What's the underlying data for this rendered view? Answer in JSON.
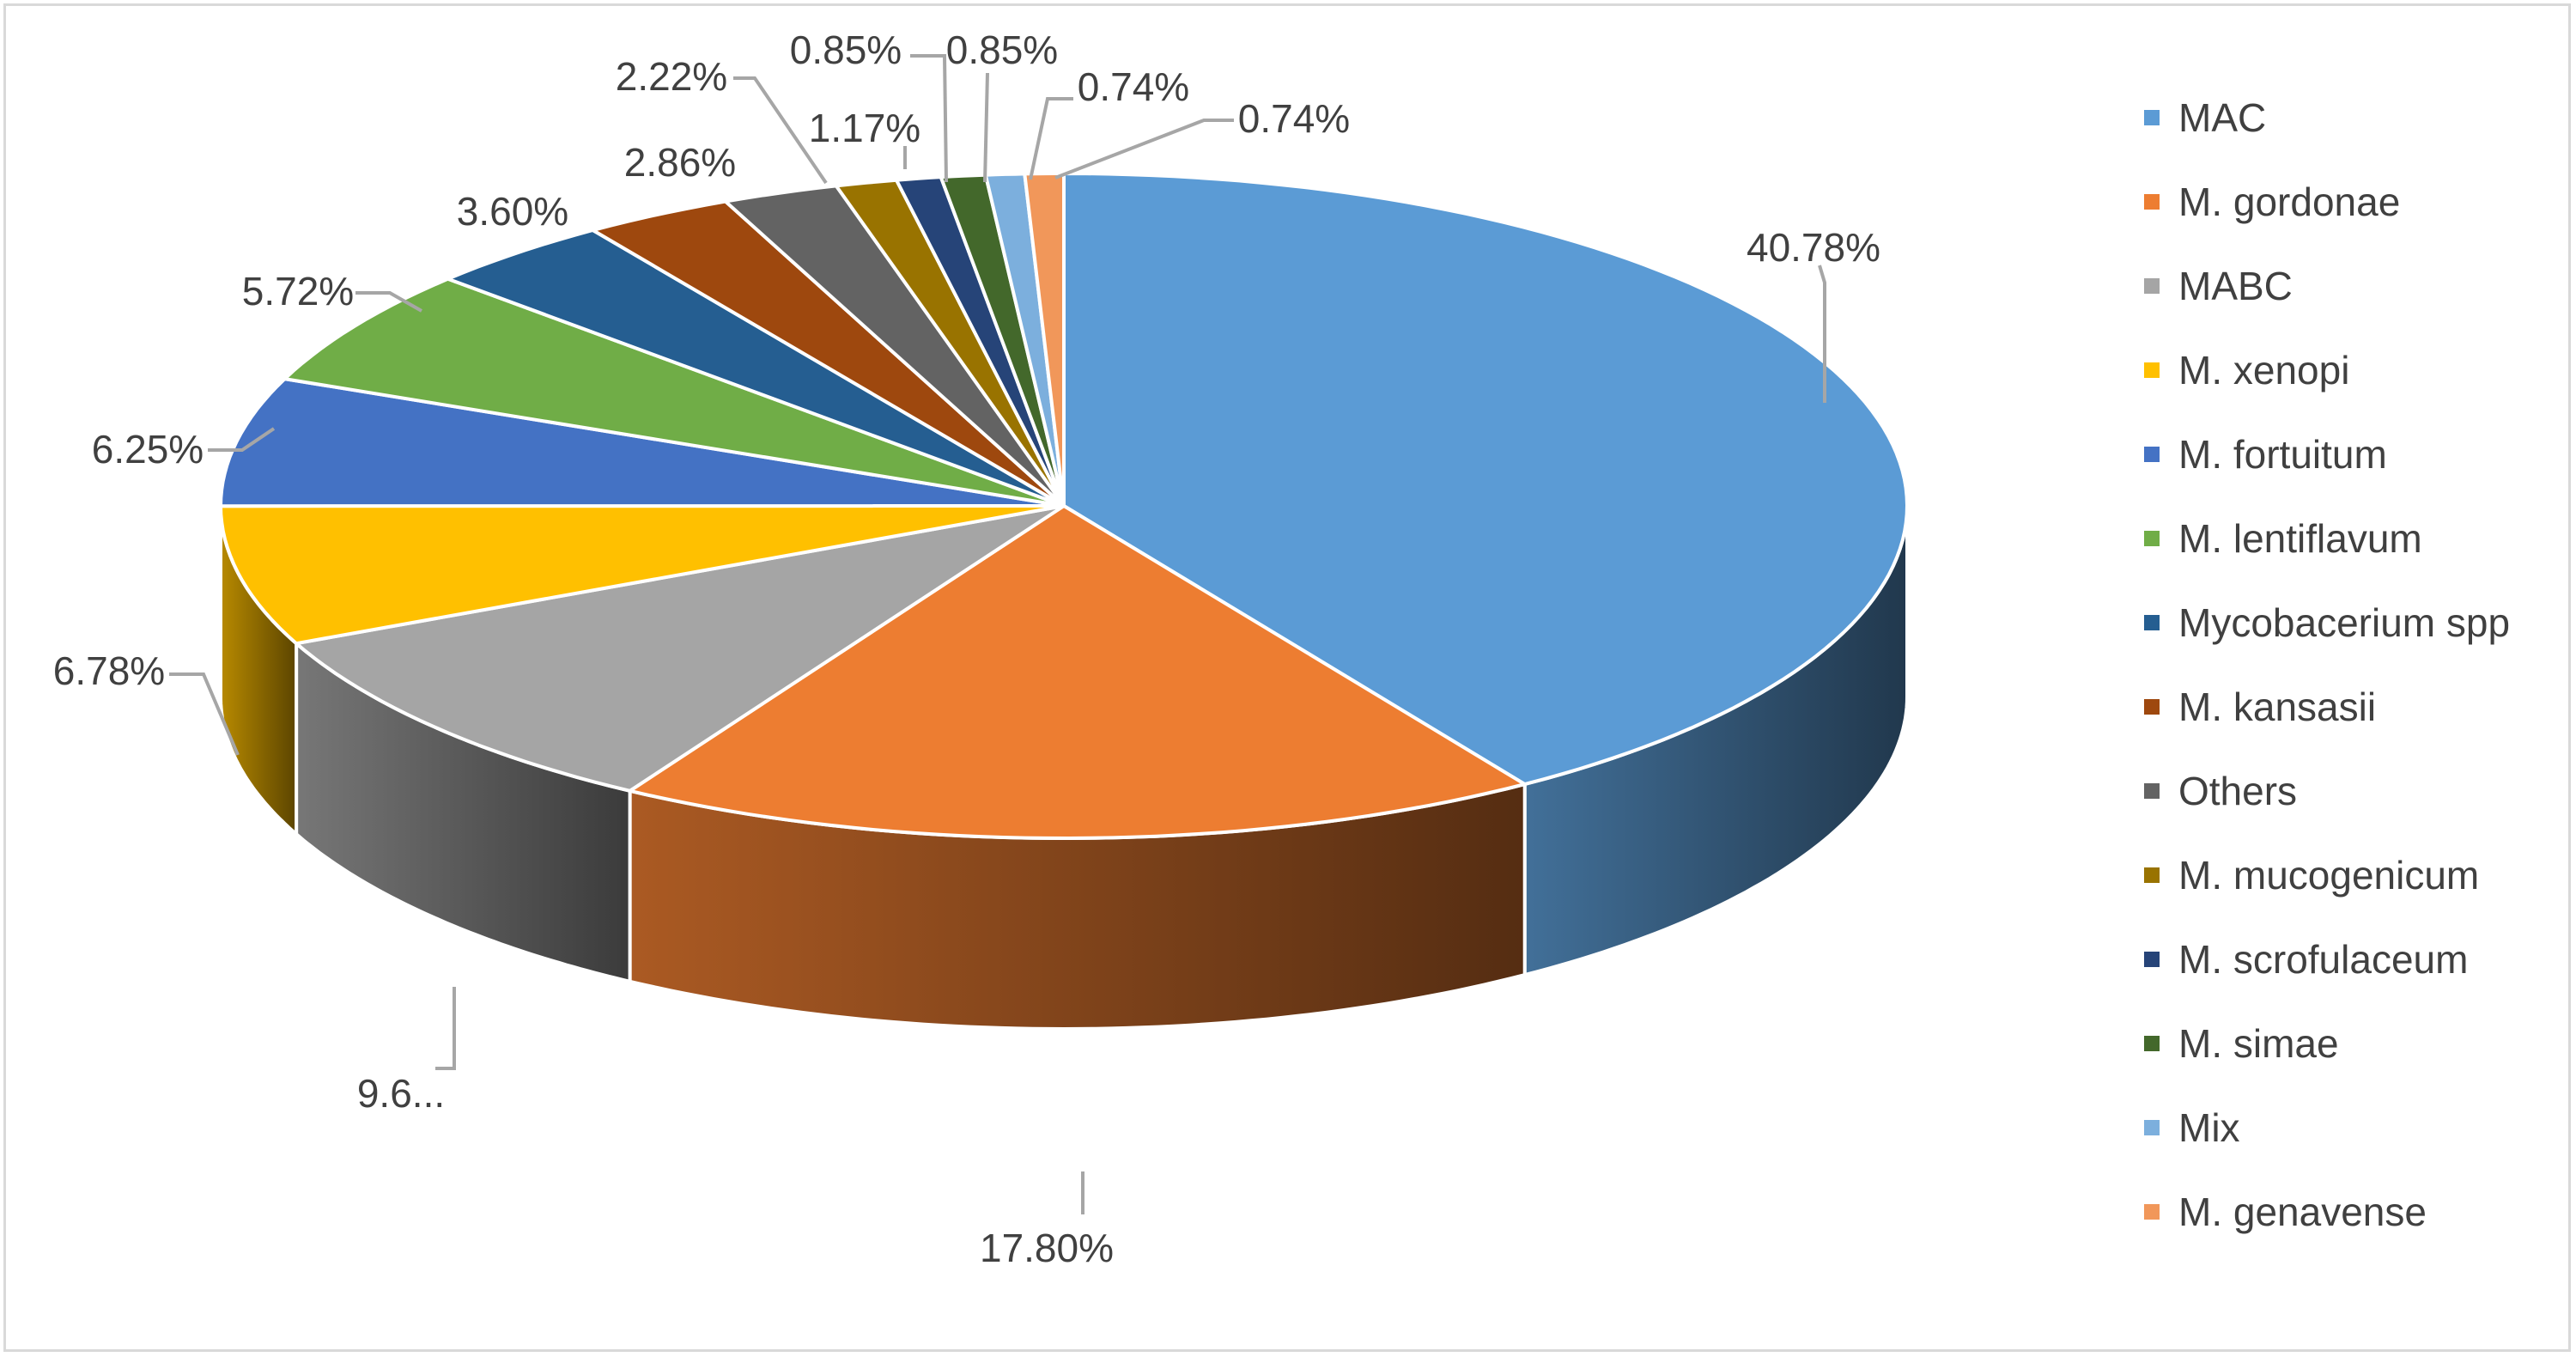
{
  "chart_data": {
    "type": "pie",
    "style": "3d",
    "legend_position": "right",
    "slices": [
      {
        "name": "MAC",
        "value": 40.78,
        "label": "40.78%",
        "color": "#5b9bd5"
      },
      {
        "name": "M. gordonae",
        "value": 17.8,
        "label": "17.80%",
        "color": "#ed7d31"
      },
      {
        "name": "MABC",
        "value": 9.6,
        "label": "9.6...",
        "color": "#a5a5a5"
      },
      {
        "name": "M. xenopi",
        "value": 6.78,
        "label": "6.78%",
        "color": "#ffc000"
      },
      {
        "name": "M. fortuitum",
        "value": 6.25,
        "label": "6.25%",
        "color": "#4472c4"
      },
      {
        "name": "M. lentiflavum",
        "value": 5.72,
        "label": "5.72%",
        "color": "#70ad47"
      },
      {
        "name": "Mycobacerium spp",
        "value": 3.6,
        "label": "3.60%",
        "color": "#255e91"
      },
      {
        "name": "M. kansasii",
        "value": 2.86,
        "label": "2.86%",
        "color": "#9e480e"
      },
      {
        "name": "Others",
        "value": 2.22,
        "label": "2.22%",
        "color": "#636363"
      },
      {
        "name": "M. mucogenicum",
        "value": 1.17,
        "label": "1.17%",
        "color": "#997300"
      },
      {
        "name": "M. scrofulaceum",
        "value": 0.85,
        "label": "0.85%",
        "color": "#264478"
      },
      {
        "name": "M. simae",
        "value": 0.85,
        "label": "0.85%",
        "color": "#43682b"
      },
      {
        "name": "Mix",
        "value": 0.74,
        "label": "0.74%",
        "color": "#7cafdd"
      },
      {
        "name": "M. genavense",
        "value": 0.74,
        "label": "0.74%",
        "color": "#f1975a"
      }
    ]
  }
}
